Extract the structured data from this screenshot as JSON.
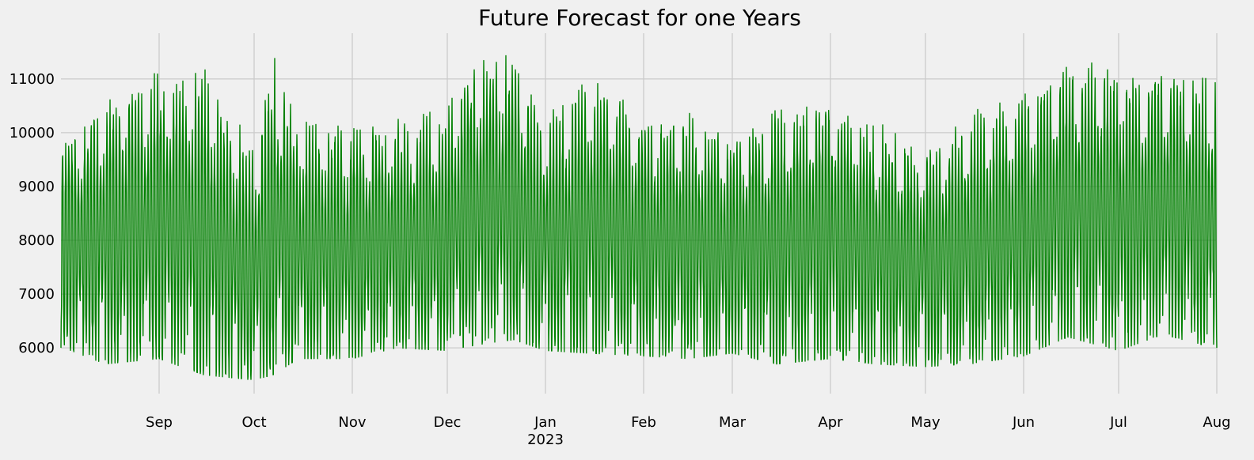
{
  "chart_data": {
    "type": "line",
    "title": "Future Forecast for one Years",
    "xlabel": "",
    "ylabel": "",
    "x_range": [
      "2022-08-01",
      "2023-08-01"
    ],
    "ylim": [
      5150,
      11850
    ],
    "grid": true,
    "legend": "none",
    "x_ticks": [
      {
        "date": "2022-09-01",
        "label": "Sep"
      },
      {
        "date": "2022-10-01",
        "label": "Oct"
      },
      {
        "date": "2022-11-01",
        "label": "Nov"
      },
      {
        "date": "2022-12-01",
        "label": "Dec"
      },
      {
        "date": "2023-01-01",
        "label": "Jan",
        "sublabel": "2023"
      },
      {
        "date": "2023-02-01",
        "label": "Feb"
      },
      {
        "date": "2023-03-01",
        "label": "Mar"
      },
      {
        "date": "2023-04-01",
        "label": "Apr"
      },
      {
        "date": "2023-05-01",
        "label": "May"
      },
      {
        "date": "2023-06-01",
        "label": "Jun"
      },
      {
        "date": "2023-07-01",
        "label": "Jul"
      },
      {
        "date": "2023-08-01",
        "label": "Aug"
      }
    ],
    "y_ticks": [
      {
        "value": 6000,
        "label": "6000"
      },
      {
        "value": 7000,
        "label": "7000"
      },
      {
        "value": 8000,
        "label": "8000"
      },
      {
        "value": 9000,
        "label": "9000"
      },
      {
        "value": 10000,
        "label": "10000"
      },
      {
        "value": 11000,
        "label": "11000"
      }
    ],
    "series": [
      {
        "color": "#008000",
        "frequency": "hourly",
        "start": "2022-08-01",
        "end": "2023-08-01",
        "daily_envelope": [
          {
            "date": "2022-08-02",
            "min": 6000,
            "max": 10000
          },
          {
            "date": "2022-08-15",
            "min": 5700,
            "max": 10800
          },
          {
            "date": "2022-09-01",
            "min": 5800,
            "max": 11250
          },
          {
            "date": "2022-09-15",
            "min": 5500,
            "max": 11250
          },
          {
            "date": "2022-10-01",
            "min": 5400,
            "max": 9750
          },
          {
            "date": "2022-10-07",
            "min": 5500,
            "max": 11550
          },
          {
            "date": "2022-10-15",
            "min": 5800,
            "max": 10300
          },
          {
            "date": "2022-11-01",
            "min": 5800,
            "max": 10200
          },
          {
            "date": "2022-11-15",
            "min": 6000,
            "max": 10300
          },
          {
            "date": "2022-12-01",
            "min": 5950,
            "max": 10500
          },
          {
            "date": "2022-12-05",
            "min": 6000,
            "max": 11250
          },
          {
            "date": "2022-12-15",
            "min": 6100,
            "max": 11500
          },
          {
            "date": "2022-12-22",
            "min": 6150,
            "max": 11500
          },
          {
            "date": "2023-01-01",
            "min": 5950,
            "max": 10300
          },
          {
            "date": "2023-01-15",
            "min": 5900,
            "max": 11200
          },
          {
            "date": "2023-02-01",
            "min": 5850,
            "max": 10500
          },
          {
            "date": "2023-02-15",
            "min": 5800,
            "max": 10400
          },
          {
            "date": "2023-03-01",
            "min": 5900,
            "max": 10100
          },
          {
            "date": "2023-03-15",
            "min": 5700,
            "max": 10500
          },
          {
            "date": "2023-04-01",
            "min": 5800,
            "max": 10800
          },
          {
            "date": "2023-04-15",
            "min": 5700,
            "max": 10300
          },
          {
            "date": "2023-05-01",
            "min": 5650,
            "max": 9800
          },
          {
            "date": "2023-05-15",
            "min": 5700,
            "max": 10400
          },
          {
            "date": "2023-06-01",
            "min": 5850,
            "max": 10800
          },
          {
            "date": "2023-06-15",
            "min": 6200,
            "max": 11400
          },
          {
            "date": "2023-07-01",
            "min": 5950,
            "max": 11350
          },
          {
            "date": "2023-07-15",
            "min": 6250,
            "max": 11300
          },
          {
            "date": "2023-07-31",
            "min": 6000,
            "max": 11000
          }
        ]
      }
    ]
  }
}
